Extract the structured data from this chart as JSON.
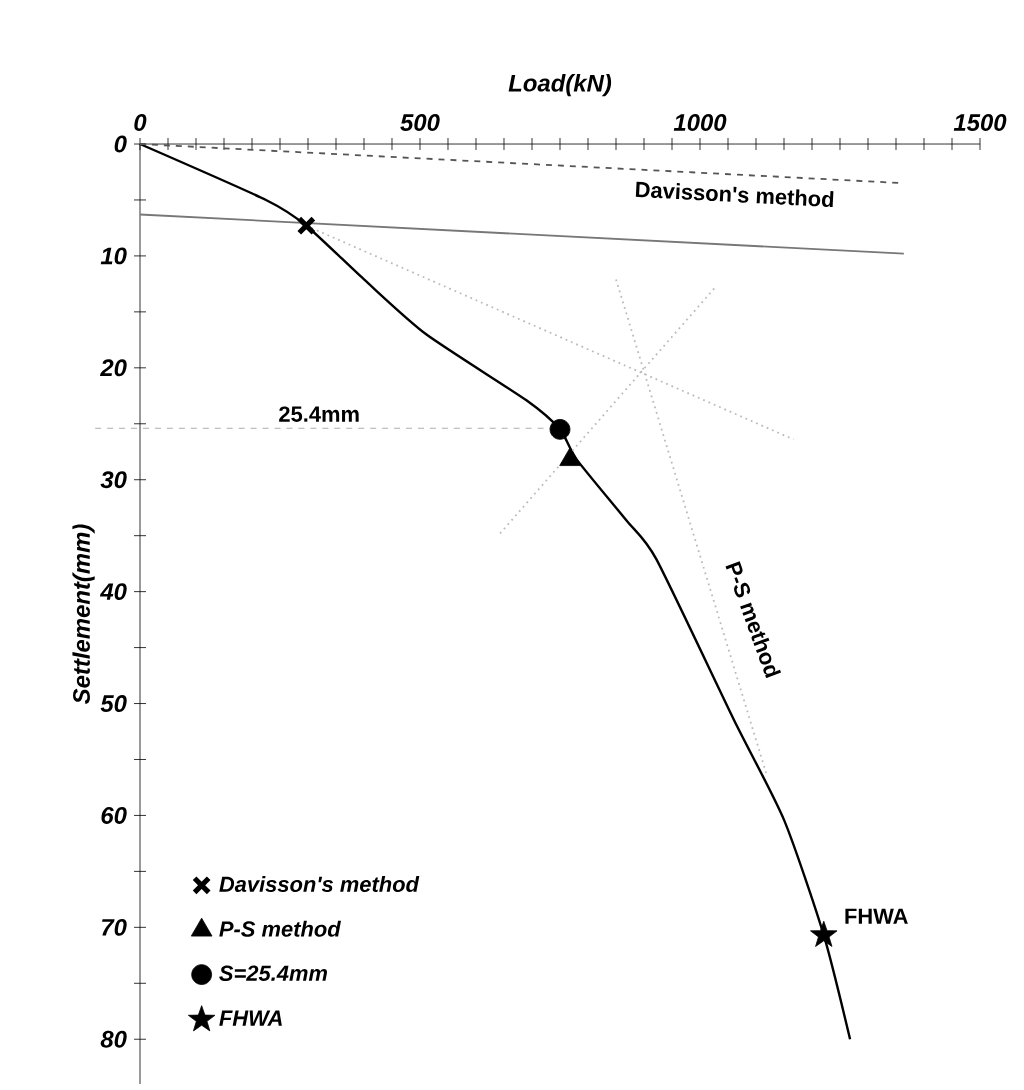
{
  "chart_data": {
    "type": "line",
    "xlabel": "Load(kN)",
    "ylabel": "Settlement(mm)",
    "xlim": [
      0,
      1500
    ],
    "ylim": [
      84,
      0
    ],
    "xticks": [
      0,
      {
        "value": 50,
        "label": null
      },
      {
        "value": 100,
        "label": null
      },
      {
        "value": 150,
        "label": null
      },
      {
        "value": 200,
        "label": null
      },
      {
        "value": 250,
        "label": null
      },
      {
        "value": 300,
        "label": null
      },
      {
        "value": 350,
        "label": null
      },
      {
        "value": 400,
        "label": null
      },
      {
        "value": 450,
        "label": null
      },
      500,
      {
        "value": 550,
        "label": null
      },
      {
        "value": 600,
        "label": null
      },
      {
        "value": 650,
        "label": null
      },
      {
        "value": 700,
        "label": null
      },
      {
        "value": 750,
        "label": null
      },
      {
        "value": 800,
        "label": null
      },
      {
        "value": 850,
        "label": null
      },
      {
        "value": 900,
        "label": null
      },
      {
        "value": 950,
        "label": null
      },
      1000,
      {
        "value": 1050,
        "label": null
      },
      {
        "value": 1100,
        "label": null
      },
      {
        "value": 1150,
        "label": null
      },
      {
        "value": 1200,
        "label": null
      },
      {
        "value": 1250,
        "label": null
      },
      {
        "value": 1300,
        "label": null
      },
      {
        "value": 1350,
        "label": null
      },
      {
        "value": 1400,
        "label": null
      },
      {
        "value": 1450,
        "label": null
      },
      1500
    ],
    "yticks": [
      0,
      {
        "value": 5,
        "label": null
      },
      10,
      {
        "value": 15,
        "label": null
      },
      20,
      {
        "value": 25,
        "label": null
      },
      30,
      {
        "value": 35,
        "label": null
      },
      40,
      {
        "value": 45,
        "label": null
      },
      50,
      {
        "value": 55,
        "label": null
      },
      60,
      {
        "value": 65,
        "label": null
      },
      70,
      {
        "value": 75,
        "label": null
      },
      80
    ],
    "grid": false,
    "legend": "bottom left",
    "series": [
      {
        "color": "#000000",
        "line_style": "solid",
        "x": [
          0,
          225,
          297,
          400,
          511,
          690,
          750,
          780,
          868,
          922,
          1060,
          1150,
          1221,
          1268
        ],
        "values": [
          0,
          5,
          7.3,
          12.1,
          17,
          22.9,
          25.5,
          28.2,
          33.6,
          37.1,
          51.4,
          60.4,
          70.7,
          80
        ]
      },
      {
        "type": "line",
        "color": "#555555",
        "line_style": "dashed",
        "x": [
          0,
          1364
        ],
        "values": [
          0,
          3.5
        ]
      },
      {
        "type": "line",
        "color": "#777777",
        "line_style": "solid",
        "x": [
          0,
          1364
        ],
        "values": [
          6.3,
          9.8
        ]
      },
      {
        "type": "line",
        "color": "#bbbbbb",
        "line_style": "dotted",
        "x": [
          297,
          1167
        ],
        "values": [
          7.3,
          26.4
        ]
      },
      {
        "type": "line",
        "color": "#bbbbbb",
        "line_style": "dotted",
        "x": [
          643,
          1029
        ],
        "values": [
          34.8,
          12.7
        ]
      },
      {
        "type": "line",
        "color": "#bbbbbb",
        "line_style": "dotted",
        "x": [
          850,
          1118
        ],
        "values": [
          12.1,
          56.2
        ]
      },
      {
        "type": "scatter",
        "name": "Davisson's method",
        "marker": "cross",
        "color": "#000000",
        "x": [
          297
        ],
        "values": [
          7.3
        ]
      },
      {
        "type": "scatter",
        "name": "P-S method",
        "marker": "triangle",
        "color": "#000000",
        "x": [
          768
        ],
        "values": [
          28.2
        ]
      },
      {
        "type": "scatter",
        "name": "S=25.4mm",
        "marker": "circle",
        "color": "#000000",
        "x": [
          750
        ],
        "values": [
          25.5
        ]
      },
      {
        "type": "scatter",
        "name": "FHWA",
        "marker": "star",
        "color": "#000000",
        "x": [
          1221
        ],
        "values": [
          70.7
        ]
      }
    ],
    "ref_lines": [
      {
        "axis": "y",
        "value": 25.4,
        "label": "25.4mm",
        "color": "#999999",
        "line_style": "dashed"
      }
    ],
    "annotations": [
      "Davisson's method",
      "P-S method",
      {
        "text": "FHWA",
        "x": 1235,
        "y": 69
      }
    ]
  }
}
